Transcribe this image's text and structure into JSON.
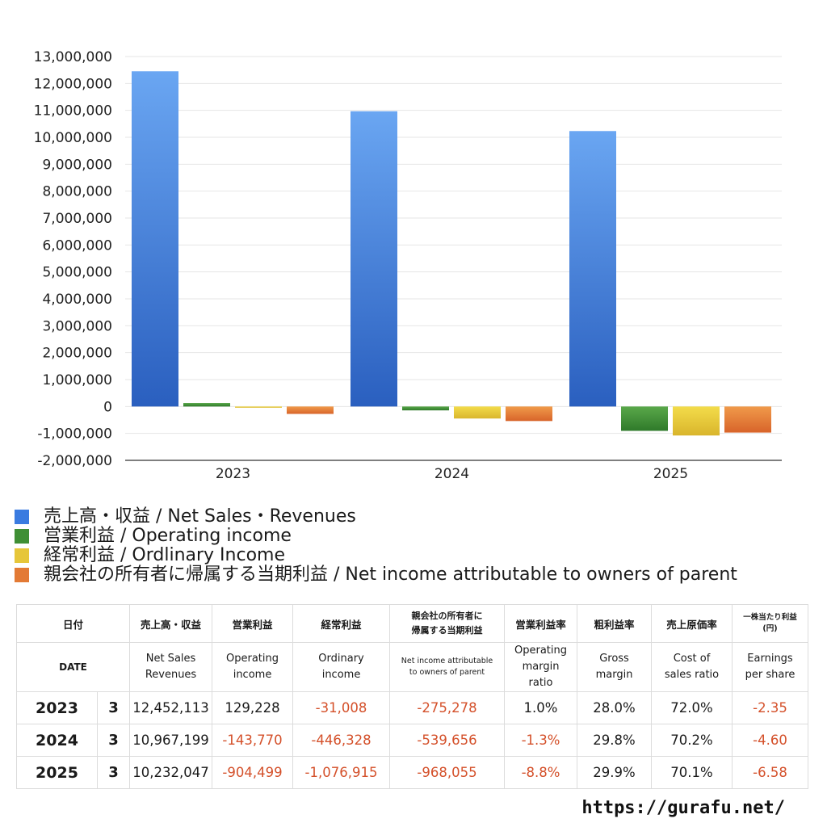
{
  "chart_data": {
    "type": "bar",
    "categories": [
      "2023",
      "2024",
      "2025"
    ],
    "ylim": [
      -2000000,
      13000000
    ],
    "ytick_step": 1000000,
    "grid": true,
    "legend_position": "bottom",
    "series": [
      {
        "name": "売上高・収益 / Net Sales・Revenues",
        "values": [
          12452113,
          10967199,
          10232047
        ],
        "color_top": "#6aa6f2",
        "color_bottom": "#2a5fbf",
        "legend_color": "#3a7be0"
      },
      {
        "name": "営業利益 / Operating income",
        "values": [
          129228,
          -143770,
          -904499
        ],
        "color_top": "#5aa84a",
        "color_bottom": "#2f7a2a",
        "legend_color": "#3f8f35"
      },
      {
        "name": "経常利益 / Ordlinary Income",
        "values": [
          -31008,
          -446328,
          -1076915
        ],
        "color_top": "#f3dc4a",
        "color_bottom": "#d9b52c",
        "legend_color": "#e6c63a"
      },
      {
        "name": "親会社の所有者に帰属する当期利益 / Net income attributable to owners of parent",
        "values": [
          -275278,
          -539656,
          -968055
        ],
        "color_top": "#f09a4a",
        "color_bottom": "#d8642a",
        "legend_color": "#e37a35"
      }
    ]
  },
  "table": {
    "header_ja": {
      "date": "日付",
      "net_sales": "売上高・収益",
      "operating_income": "営業利益",
      "ordinary_income": "経常利益",
      "net_income_1": "親会社の所有者に",
      "net_income_2": "帰属する当期利益",
      "op_margin": "営業利益率",
      "gross_margin": "粗利益率",
      "cost_ratio": "売上原価率",
      "eps_1": "一株当たり利益",
      "eps_2": "(円)"
    },
    "header_en": {
      "date": "DATE",
      "net_sales_1": "Net Sales",
      "net_sales_2": "Revenues",
      "operating_income_1": "Operating",
      "operating_income_2": "income",
      "ordinary_income_1": "Ordinary",
      "ordinary_income_2": "income",
      "net_income_1": "Net income attributable",
      "net_income_2": "to owners of parent",
      "op_margin_1": "Operating",
      "op_margin_2": "margin",
      "op_margin_3": "ratio",
      "gross_margin_1": "Gross",
      "gross_margin_2": "margin",
      "cost_ratio_1": "Cost of",
      "cost_ratio_2": "sales ratio",
      "eps_1": "Earnings",
      "eps_2": "per share"
    },
    "rows": [
      {
        "year": "2023",
        "month": "3",
        "net_sales": "12,452,113",
        "operating_income": "129,228",
        "ordinary_income": "-31,008",
        "net_income": "-275,278",
        "op_margin": "1.0%",
        "gross_margin": "28.0%",
        "cost_ratio": "72.0%",
        "eps": "-2.35"
      },
      {
        "year": "2024",
        "month": "3",
        "net_sales": "10,967,199",
        "operating_income": "-143,770",
        "ordinary_income": "-446,328",
        "net_income": "-539,656",
        "op_margin": "-1.3%",
        "gross_margin": "29.8%",
        "cost_ratio": "70.2%",
        "eps": "-4.60"
      },
      {
        "year": "2025",
        "month": "3",
        "net_sales": "10,232,047",
        "operating_income": "-904,499",
        "ordinary_income": "-1,076,915",
        "net_income": "-968,055",
        "op_margin": "-8.8%",
        "gross_margin": "29.9%",
        "cost_ratio": "70.1%",
        "eps": "-6.58"
      }
    ]
  },
  "footer": {
    "url": "https://gurafu.net/"
  }
}
